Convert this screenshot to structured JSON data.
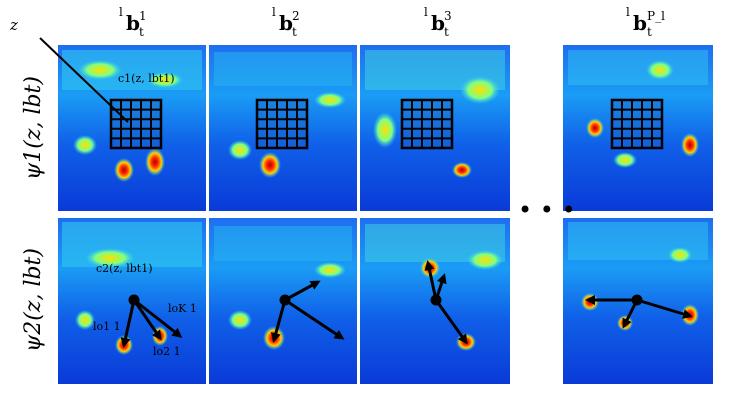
{
  "columns": [
    {
      "base": "b",
      "pre": "l",
      "sub": "t",
      "sup": "1"
    },
    {
      "base": "b",
      "pre": "l",
      "sub": "t",
      "sup": "2"
    },
    {
      "base": "b",
      "pre": "l",
      "sub": "t",
      "sup": "3"
    },
    {
      "base": "b",
      "pre": "l",
      "sub": "t",
      "sup": "P_l"
    }
  ],
  "rows": [
    {
      "label": "ψ1(z, lbt)"
    },
    {
      "label": "ψ2(z, lbt)"
    }
  ],
  "annotations": {
    "z_label": "z",
    "c1_label": "c1(z, lbt1)",
    "c2_label": "c2(z, lbt1)",
    "o1_label": "lo1 1",
    "o2_label": "lo2 1",
    "oK_label": "loK 1",
    "ellipsis": "• • •"
  }
}
